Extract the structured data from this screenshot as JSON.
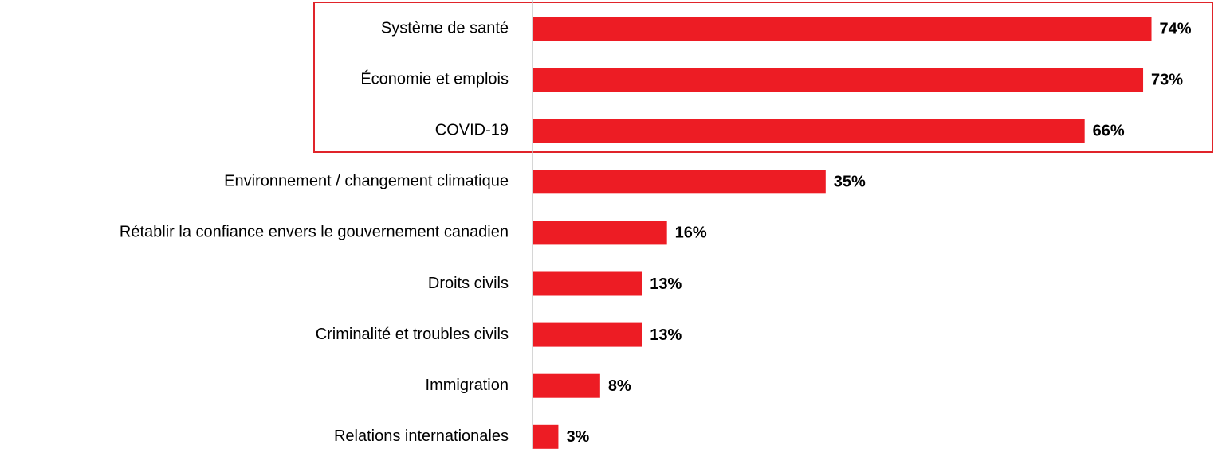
{
  "chart_data": {
    "type": "bar",
    "orientation": "horizontal",
    "categories": [
      "Système de santé",
      "Économie et emplois",
      "COVID-19",
      "Environnement / changement climatique",
      "Rétablir la confiance envers le gouvernement canadien",
      "Droits civils",
      "Criminalité et troubles civils",
      "Immigration",
      "Relations internationales"
    ],
    "values": [
      74,
      73,
      66,
      35,
      16,
      13,
      13,
      8,
      3
    ],
    "value_labels": [
      "74%",
      "73%",
      "66%",
      "35%",
      "16%",
      "13%",
      "13%",
      "8%",
      "3%"
    ],
    "color": "#ed1c24"
  }
}
